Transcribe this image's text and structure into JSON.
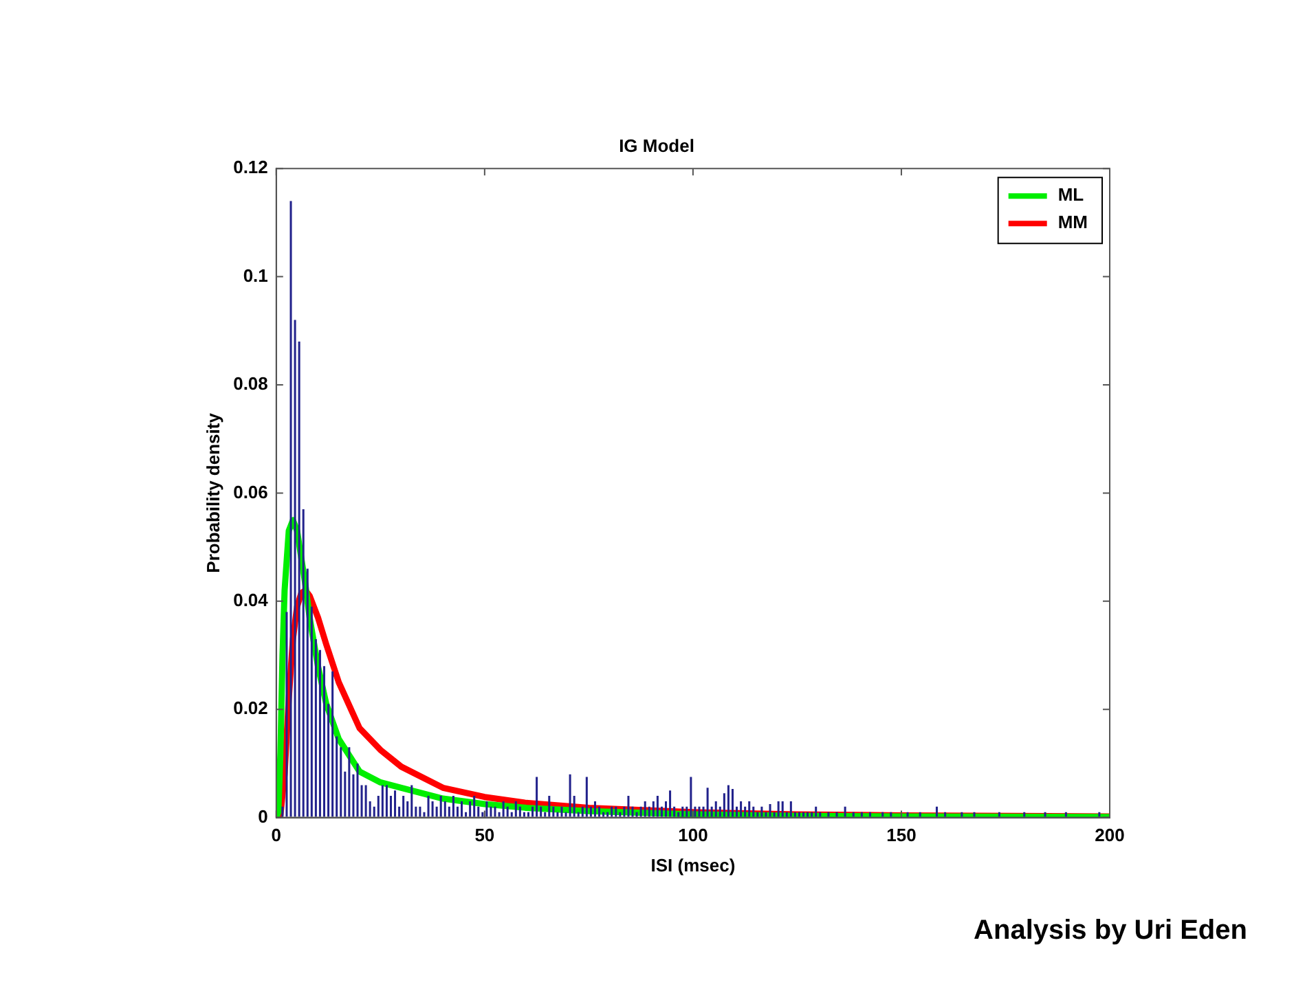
{
  "chart_data": {
    "type": "histogram",
    "title": "IG Model",
    "xlabel": "ISI (msec)",
    "ylabel": "Probability density",
    "color": "#22228c",
    "bins": [
      0,
      1,
      2,
      3,
      4,
      5,
      6,
      7,
      8,
      9,
      10,
      11,
      12,
      13,
      14,
      15,
      16,
      17,
      18,
      19,
      20,
      21,
      22,
      23,
      24,
      25,
      26,
      27,
      28,
      29,
      30,
      31,
      32,
      33,
      34,
      35,
      36,
      37,
      38,
      39,
      40,
      41,
      42,
      43,
      44,
      45,
      46,
      47,
      48,
      49,
      50,
      51,
      52,
      53,
      54,
      55,
      56,
      57,
      58,
      59,
      60,
      61,
      62,
      63,
      64,
      65,
      66,
      67,
      68,
      69,
      70,
      71,
      72,
      73,
      74,
      75,
      76,
      77,
      78,
      79,
      80,
      81,
      82,
      83,
      84,
      85,
      86,
      87,
      88,
      89,
      90,
      91,
      92,
      93,
      94,
      95,
      96,
      97,
      98,
      99,
      100,
      101,
      102,
      103,
      104,
      105,
      106,
      107,
      108,
      109,
      110,
      111,
      112,
      113,
      114,
      115,
      116,
      117,
      118,
      119,
      120,
      121,
      122,
      123,
      124,
      125,
      126,
      127,
      128,
      129,
      130,
      131,
      132,
      133,
      134,
      135,
      136,
      137,
      138,
      139,
      140,
      141,
      142,
      143,
      144,
      145,
      146,
      147,
      148,
      149,
      150,
      151,
      152,
      153,
      154,
      155,
      156,
      157,
      158,
      159,
      160,
      161,
      162,
      163,
      164,
      165,
      166,
      167,
      168,
      169,
      170,
      171,
      172,
      173,
      174,
      175,
      176,
      177,
      178,
      179,
      180,
      181,
      182,
      183,
      184,
      185,
      186,
      187,
      188,
      189,
      190,
      191,
      192,
      193,
      194,
      195,
      196,
      197,
      198,
      199,
      200
    ],
    "values": [
      0,
      0.002,
      0.038,
      0.114,
      0.092,
      0.088,
      0.057,
      0.046,
      0.039,
      0.033,
      0.031,
      0.028,
      0.021,
      0.027,
      0.015,
      0.013,
      0.0085,
      0.013,
      0.008,
      0.01,
      0.006,
      0.006,
      0.003,
      0.002,
      0.004,
      0.006,
      0.006,
      0.004,
      0.005,
      0.002,
      0.004,
      0.003,
      0.006,
      0.002,
      0.002,
      0.001,
      0.004,
      0.003,
      0.002,
      0.004,
      0.003,
      0.002,
      0.004,
      0.002,
      0.003,
      0.001,
      0.003,
      0.004,
      0.002,
      0.001,
      0.003,
      0.002,
      0.002,
      0.001,
      0.003,
      0.002,
      0.001,
      0.003,
      0.002,
      0.001,
      0.001,
      0.002,
      0.0075,
      0.002,
      0.001,
      0.004,
      0.002,
      0.001,
      0.002,
      0.001,
      0.008,
      0.004,
      0.001,
      0.002,
      0.0075,
      0.002,
      0.003,
      0.002,
      0.001,
      0.001,
      0.002,
      0.002,
      0.001,
      0.002,
      0.004,
      0.002,
      0.001,
      0.002,
      0.003,
      0.002,
      0.003,
      0.004,
      0.002,
      0.003,
      0.005,
      0.002,
      0.001,
      0.002,
      0.002,
      0.0075,
      0.002,
      0.002,
      0.002,
      0.0055,
      0.002,
      0.003,
      0.002,
      0.0045,
      0.006,
      0.0053,
      0.002,
      0.003,
      0.002,
      0.003,
      0.002,
      0.001,
      0.002,
      0.001,
      0.0025,
      0.001,
      0.003,
      0.003,
      0.001,
      0.003,
      0.001,
      0.001,
      0.001,
      0.001,
      0.001,
      0.002,
      0.001,
      0,
      0.001,
      0,
      0.001,
      0,
      0.002,
      0,
      0.001,
      0,
      0.001,
      0,
      0.001,
      0,
      0,
      0.001,
      0,
      0.001,
      0,
      0,
      0,
      0.001,
      0,
      0,
      0.001,
      0,
      0,
      0,
      0.002,
      0,
      0.001,
      0,
      0,
      0,
      0.001,
      0,
      0,
      0.001,
      0,
      0,
      0,
      0,
      0,
      0.001,
      0,
      0,
      0,
      0,
      0,
      0.001,
      0,
      0,
      0,
      0,
      0.001,
      0,
      0,
      0,
      0,
      0.001,
      0,
      0,
      0,
      0,
      0,
      0,
      0,
      0.001,
      0,
      0
    ],
    "series": [
      {
        "name": "ML",
        "type": "line",
        "color": "#00ee00",
        "x": [
          0,
          0.5,
          1,
          1.5,
          2,
          3,
          4,
          5,
          6,
          7,
          8,
          10,
          12,
          15,
          20,
          25,
          30,
          40,
          50,
          60,
          75,
          100,
          125,
          150,
          200
        ],
        "values": [
          0,
          0.001,
          0.012,
          0.03,
          0.042,
          0.053,
          0.055,
          0.053,
          0.048,
          0.043,
          0.037,
          0.028,
          0.021,
          0.0145,
          0.0085,
          0.0065,
          0.0055,
          0.0035,
          0.0025,
          0.0018,
          0.0012,
          0.0006,
          0.0003,
          0.0002,
          0.0001
        ]
      },
      {
        "name": "MM",
        "type": "line",
        "color": "#ff0000",
        "x": [
          0,
          1,
          2,
          3,
          4,
          5,
          6,
          7,
          8,
          10,
          12,
          15,
          20,
          25,
          30,
          40,
          50,
          60,
          75,
          100,
          125,
          150,
          200
        ],
        "values": [
          0,
          0.0005,
          0.008,
          0.022,
          0.033,
          0.039,
          0.0415,
          0.042,
          0.041,
          0.037,
          0.032,
          0.025,
          0.0165,
          0.0125,
          0.0094,
          0.0055,
          0.0038,
          0.0027,
          0.0018,
          0.001,
          0.0006,
          0.0004,
          0.0002
        ]
      }
    ],
    "xlim": [
      0,
      200
    ],
    "xticks": [
      0,
      50,
      100,
      150,
      200
    ],
    "ylim": [
      0,
      0.12
    ],
    "yticks": [
      0,
      0.02,
      0.04,
      0.06,
      0.08,
      0.1,
      0.12
    ],
    "grid": false,
    "legend": "top right",
    "annotations": [
      "Analysis by Uri Eden"
    ]
  }
}
